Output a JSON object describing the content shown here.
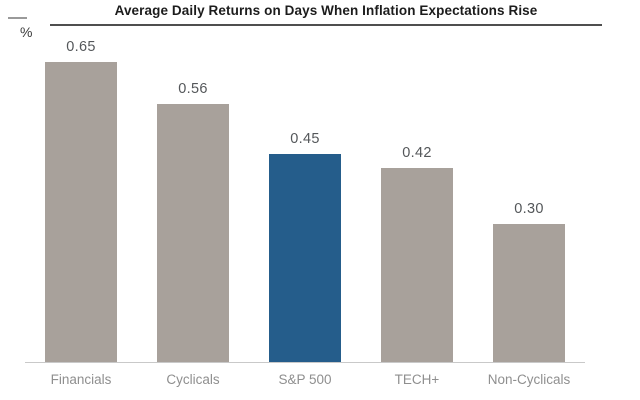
{
  "chart_data": {
    "type": "bar",
    "title": "Average Daily Returns on Days When Inflation Expectations Rise",
    "ylabel": "%",
    "xlabel": "",
    "categories": [
      "Financials",
      "Cyclicals",
      "S&P 500",
      "TECH+",
      "Non-Cyclicals"
    ],
    "values": [
      0.65,
      0.56,
      0.45,
      0.42,
      0.3
    ],
    "value_labels": [
      "0.65",
      "0.56",
      "0.45",
      "0.42",
      "0.30"
    ],
    "highlight_index": 2,
    "ylim": [
      0,
      0.7
    ],
    "grid": false,
    "legend": "none",
    "colors": {
      "bar_default": "#a8a19b",
      "bar_highlight": "#255d8b",
      "title_text": "#1c1c1c",
      "title_rule": "#4f4f4f",
      "tick_line": "#9a9a9a",
      "value_label": "#54575a",
      "category_label": "#8f8f8f",
      "axis_line": "#c9c9c9",
      "background": "#ffffff"
    }
  }
}
